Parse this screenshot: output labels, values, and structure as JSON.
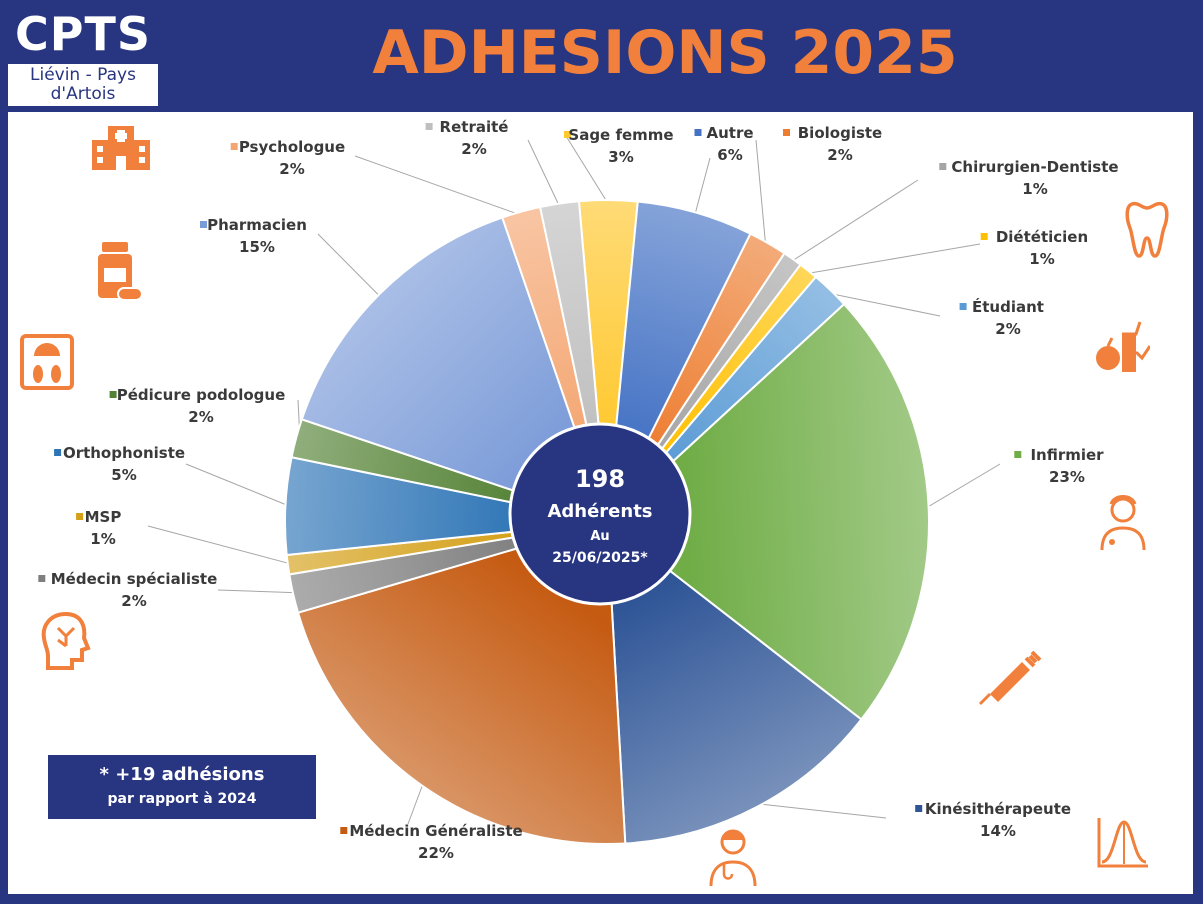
{
  "logo": {
    "main": "CPTS",
    "line1": "Liévin - Pays",
    "line2": "d'Artois"
  },
  "title": "ADHESIONS 2025",
  "center": {
    "count": "198",
    "label": "Adhérents",
    "date_prefix": "Au",
    "date": "25/06/2025*"
  },
  "note": {
    "line1": "* +19 adhésions",
    "line2": "par rapport à 2024"
  },
  "icons": [
    "hospital-icon",
    "medicine-bottle-icon",
    "weighing-scale-icon",
    "brain-head-icon",
    "tooth-icon",
    "diet-apple-icon",
    "nurse-icon",
    "syringe-icon",
    "doctor-icon",
    "bell-curve-icon"
  ],
  "colors": {
    "background": "#283580",
    "accent": "#f0803c"
  },
  "chart_data": {
    "type": "pie",
    "title": "ADHESIONS 2025",
    "slices": [
      {
        "label": "Sage femme",
        "value": 3,
        "display": "3%",
        "color": "#ffc82e"
      },
      {
        "label": "Autre",
        "value": 6,
        "display": "6%",
        "color": "#4472c4"
      },
      {
        "label": "Biologiste",
        "value": 2,
        "display": "2%",
        "color": "#ed7d31"
      },
      {
        "label": "Chirurgien-Dentiste",
        "value": 1,
        "display": "1%",
        "color": "#a5a5a5"
      },
      {
        "label": "Diététicien",
        "value": 1,
        "display": "1%",
        "color": "#ffc000"
      },
      {
        "label": "Étudiant",
        "value": 2,
        "display": "2%",
        "color": "#5b9bd5"
      },
      {
        "label": "Infirmier",
        "value": 23,
        "display": "23%",
        "color": "#70ad47"
      },
      {
        "label": "Kinésithérapeute",
        "value": 14,
        "display": "14%",
        "color": "#2f5597"
      },
      {
        "label": "Médecin Généraliste",
        "value": 22,
        "display": "22%",
        "color": "#c55a11"
      },
      {
        "label": "Médecin spécialiste",
        "value": 2,
        "display": "2%",
        "color": "#7f7f7f"
      },
      {
        "label": "MSP",
        "value": 1,
        "display": "1%",
        "color": "#d4a017"
      },
      {
        "label": "Orthophoniste",
        "value": 5,
        "display": "5%",
        "color": "#2e75b6"
      },
      {
        "label": "Pédicure podologue",
        "value": 2,
        "display": "2%",
        "color": "#548235"
      },
      {
        "label": "Pharmacien",
        "value": 15,
        "display": "15%",
        "color": "#7b9bd8"
      },
      {
        "label": "Psychologue",
        "value": 2,
        "display": "2%",
        "color": "#f4a672"
      },
      {
        "label": "Retraité",
        "value": 2,
        "display": "2%",
        "color": "#bfbfbf"
      }
    ]
  }
}
